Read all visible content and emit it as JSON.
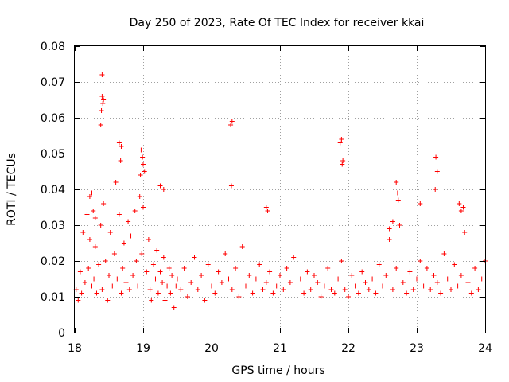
{
  "chart_data": {
    "type": "scatter",
    "title": "Day 250 of 2023, Rate Of TEC Index for receiver kkai",
    "xlabel": "GPS time / hours",
    "ylabel": "ROTI / TECUs",
    "xlim": [
      18,
      24
    ],
    "ylim": [
      0,
      0.08
    ],
    "x_ticks": [
      18,
      19,
      20,
      21,
      22,
      23,
      24
    ],
    "x_tick_labels": [
      "18",
      "19",
      "20",
      "21",
      "22",
      "23",
      "24"
    ],
    "y_ticks": [
      0,
      0.01,
      0.02,
      0.03,
      0.04,
      0.05,
      0.06,
      0.07,
      0.08
    ],
    "y_tick_labels": [
      "0",
      "0.01",
      "0.02",
      "0.03",
      "0.04",
      "0.05",
      "0.06",
      "0.07",
      "0.08"
    ],
    "grid": true,
    "marker": "+",
    "color": "#ff0000",
    "series": [
      {
        "x": [
          18.02,
          18.05,
          18.08,
          18.1,
          18.12,
          18.15,
          18.18,
          18.2,
          18.22,
          18.25,
          18.28,
          18.3,
          18.32,
          18.35,
          18.38,
          18.4,
          18.42,
          18.45,
          18.48,
          18.5,
          18.52,
          18.55,
          18.58,
          18.6,
          18.62,
          18.65,
          18.68,
          18.7,
          18.72,
          18.75,
          18.78,
          18.8,
          18.82,
          18.85,
          18.88,
          18.9,
          18.92,
          18.95,
          18.98,
          19.0,
          19.02,
          19.05,
          19.08,
          19.1,
          19.12,
          19.15,
          19.18,
          19.2,
          19.22,
          19.25,
          19.28,
          19.3,
          19.32,
          19.35,
          19.38,
          19.4,
          19.42,
          19.45,
          19.48,
          19.5,
          19.55,
          19.6,
          19.65,
          19.7,
          19.75,
          19.8,
          19.85,
          19.9,
          19.95,
          20.0,
          20.05,
          20.1,
          20.15,
          20.2,
          20.25,
          20.3,
          20.35,
          20.4,
          20.45,
          20.5,
          20.55,
          20.6,
          20.65,
          20.7,
          20.75,
          20.8,
          20.85,
          20.9,
          20.95,
          21.0,
          21.05,
          21.1,
          21.15,
          21.2,
          21.25,
          21.3,
          21.35,
          21.4,
          21.45,
          21.5,
          21.55,
          21.6,
          21.65,
          21.7,
          21.75,
          21.8,
          21.85,
          21.9,
          21.95,
          22.0,
          22.05,
          22.1,
          22.15,
          22.2,
          22.25,
          22.3,
          22.35,
          22.4,
          22.45,
          22.5,
          22.55,
          22.6,
          22.65,
          22.7,
          22.75,
          22.8,
          22.85,
          22.9,
          22.95,
          23.0,
          23.05,
          23.1,
          23.15,
          23.2,
          23.25,
          23.3,
          23.35,
          23.4,
          23.45,
          23.5,
          23.55,
          23.6,
          23.65,
          23.7,
          23.75,
          23.8,
          23.85,
          23.9,
          23.95,
          24.0,
          18.4,
          18.42,
          18.38,
          18.41,
          18.39,
          18.4,
          18.65,
          18.68,
          18.67,
          18.97,
          18.99,
          19.0,
          18.96,
          20.3,
          20.28,
          20.29,
          21.88,
          21.9,
          21.92,
          21.91,
          23.28,
          23.3,
          23.27,
          23.62,
          23.68,
          23.65,
          23.05,
          22.7,
          22.72,
          22.73,
          20.8,
          20.82,
          18.22,
          18.25,
          18.27,
          18.3,
          19.25,
          19.3,
          22.6,
          22.65
        ],
        "y": [
          0.012,
          0.009,
          0.017,
          0.011,
          0.028,
          0.014,
          0.033,
          0.018,
          0.026,
          0.013,
          0.015,
          0.024,
          0.011,
          0.019,
          0.03,
          0.012,
          0.036,
          0.02,
          0.009,
          0.016,
          0.028,
          0.013,
          0.022,
          0.042,
          0.015,
          0.033,
          0.011,
          0.018,
          0.025,
          0.014,
          0.031,
          0.012,
          0.027,
          0.016,
          0.034,
          0.02,
          0.013,
          0.038,
          0.022,
          0.035,
          0.045,
          0.017,
          0.026,
          0.012,
          0.009,
          0.019,
          0.015,
          0.023,
          0.011,
          0.017,
          0.014,
          0.021,
          0.009,
          0.013,
          0.018,
          0.011,
          0.016,
          0.007,
          0.013,
          0.015,
          0.012,
          0.018,
          0.01,
          0.014,
          0.021,
          0.012,
          0.016,
          0.009,
          0.019,
          0.013,
          0.011,
          0.017,
          0.014,
          0.022,
          0.015,
          0.012,
          0.018,
          0.01,
          0.024,
          0.013,
          0.016,
          0.011,
          0.015,
          0.019,
          0.012,
          0.014,
          0.017,
          0.011,
          0.013,
          0.016,
          0.012,
          0.018,
          0.014,
          0.021,
          0.013,
          0.015,
          0.011,
          0.017,
          0.012,
          0.016,
          0.014,
          0.01,
          0.013,
          0.018,
          0.012,
          0.011,
          0.015,
          0.02,
          0.012,
          0.01,
          0.016,
          0.013,
          0.011,
          0.017,
          0.014,
          0.012,
          0.015,
          0.011,
          0.019,
          0.013,
          0.016,
          0.026,
          0.012,
          0.018,
          0.03,
          0.014,
          0.011,
          0.017,
          0.012,
          0.015,
          0.02,
          0.013,
          0.018,
          0.012,
          0.016,
          0.014,
          0.011,
          0.022,
          0.015,
          0.012,
          0.019,
          0.013,
          0.016,
          0.028,
          0.014,
          0.011,
          0.018,
          0.012,
          0.015,
          0.02,
          0.072,
          0.065,
          0.058,
          0.064,
          0.062,
          0.066,
          0.053,
          0.052,
          0.048,
          0.051,
          0.049,
          0.047,
          0.044,
          0.059,
          0.058,
          0.041,
          0.053,
          0.054,
          0.048,
          0.047,
          0.049,
          0.045,
          0.04,
          0.036,
          0.035,
          0.034,
          0.036,
          0.042,
          0.039,
          0.037,
          0.035,
          0.034,
          0.038,
          0.039,
          0.034,
          0.032,
          0.041,
          0.04,
          0.029,
          0.031
        ]
      }
    ]
  }
}
